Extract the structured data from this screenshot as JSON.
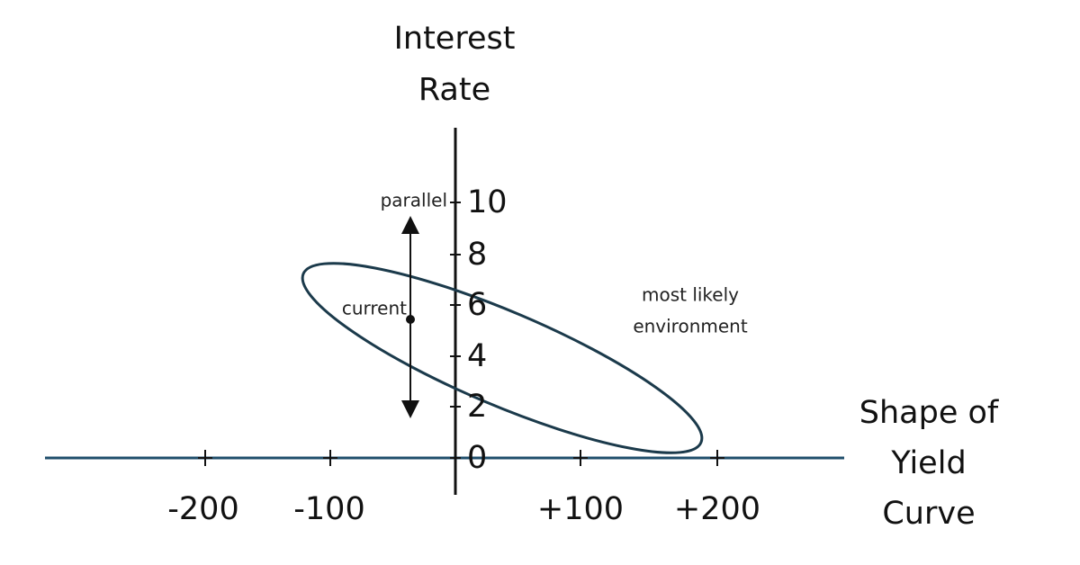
{
  "y_axis": {
    "title_lines": [
      "Interest",
      "Rate"
    ],
    "ticks": [
      "10",
      "8",
      "6",
      "4",
      "2",
      "0"
    ]
  },
  "x_axis": {
    "title_lines": [
      "Shape of",
      "Yield",
      "Curve"
    ],
    "ticks": [
      "-200",
      "-100",
      "+100",
      "+200"
    ]
  },
  "annotations": {
    "parallel": "parallel",
    "current": "current",
    "region_lines": [
      "most likely",
      "environment"
    ]
  }
}
